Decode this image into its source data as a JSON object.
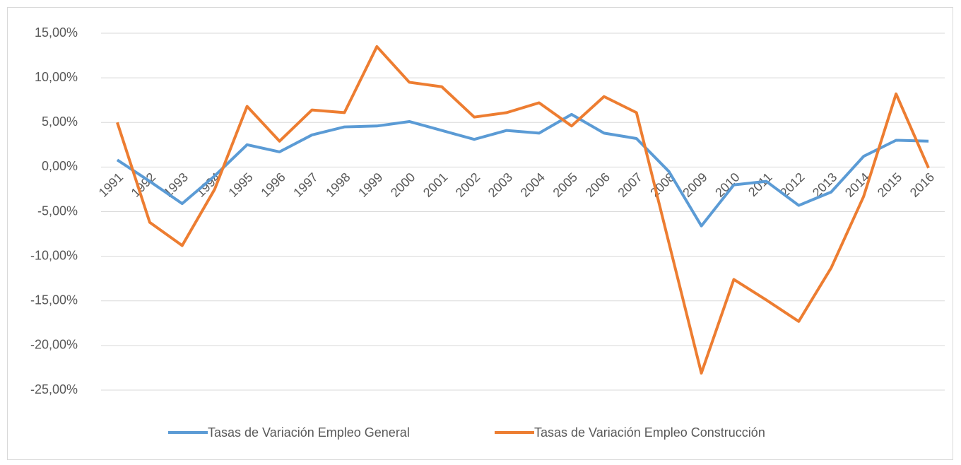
{
  "chart_data": {
    "type": "line",
    "categories": [
      "1991",
      "1992",
      "1993",
      "1994",
      "1995",
      "1996",
      "1997",
      "1998",
      "1999",
      "2000",
      "2001",
      "2002",
      "2003",
      "2004",
      "2005",
      "2006",
      "2007",
      "2008",
      "2009",
      "2010",
      "2011",
      "2012",
      "2013",
      "2014",
      "2015",
      "2016"
    ],
    "series": [
      {
        "name": "Tasas de Variación Empleo General",
        "color": "#5b9bd5",
        "values": [
          0.8,
          -1.6,
          -4.1,
          -1.0,
          2.5,
          1.7,
          3.6,
          4.5,
          4.6,
          5.1,
          4.1,
          3.1,
          4.1,
          3.8,
          5.9,
          3.8,
          3.2,
          -0.5,
          -6.6,
          -2.0,
          -1.6,
          -4.3,
          -2.8,
          1.2,
          3.0,
          2.9
        ]
      },
      {
        "name": "Tasas de Variación Empleo Construcción",
        "color": "#ed7d31",
        "values": [
          5.0,
          -6.2,
          -8.8,
          -2.5,
          6.8,
          2.9,
          6.4,
          6.1,
          13.5,
          9.5,
          9.0,
          5.6,
          6.1,
          7.2,
          4.6,
          7.9,
          6.1,
          -8.5,
          -23.1,
          -12.6,
          -14.9,
          -17.3,
          -11.3,
          -3.3,
          8.2,
          -0.1
        ]
      }
    ],
    "ylim": [
      -25,
      15
    ],
    "yticks": [
      {
        "value": -25,
        "label": "-25,00%"
      },
      {
        "value": -20,
        "label": "-20,00%"
      },
      {
        "value": -15,
        "label": "-15,00%"
      },
      {
        "value": -10,
        "label": "-10,00%"
      },
      {
        "value": -5,
        "label": "-5,00%"
      },
      {
        "value": 0,
        "label": "0,00%"
      },
      {
        "value": 5,
        "label": "5,00%"
      },
      {
        "value": 10,
        "label": "10,00%"
      },
      {
        "value": 15,
        "label": "15,00%"
      }
    ],
    "grid": true,
    "legend": "bottom"
  }
}
